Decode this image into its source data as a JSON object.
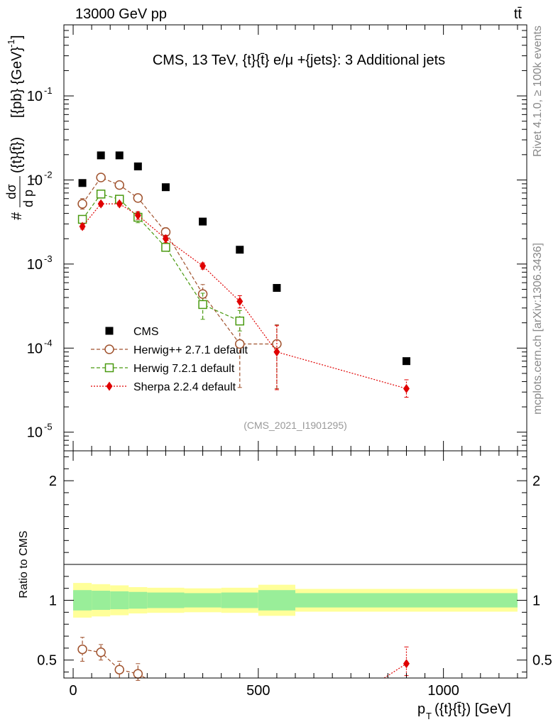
{
  "header": {
    "left": "13000 GeV pp",
    "right": "tt̄"
  },
  "side_labels": {
    "rivet": "Rivet 4.1.0, ≥ 100k events",
    "mcplots": "mcplots.cern.ch [arXiv:1306.3436]"
  },
  "chart_data": [
    {
      "type": "scatter",
      "panel": "main",
      "title": "CMS, 13 TeV, {t}{t̄} e/μ +{jets}: 3 Additional jets",
      "watermark": "(CMS_2021_I1901295)",
      "ylabel": "# dσ / d pT({t}{t̄}) [{pb} {GeV}^-1]",
      "ylabel_parts": {
        "hash": "#",
        "numerator": "dσ",
        "denominator_d": "d p",
        "sub": "T",
        "paren": "({t}{t̄})",
        "unit": "[{pb} {GeV}",
        "exponent": "-1",
        "close": "]"
      },
      "yscale": "log",
      "xlim": [
        -25,
        1225
      ],
      "ylim": [
        6e-06,
        0.7
      ],
      "legend_position": "lower-left",
      "y_ticks": [
        {
          "value": 0.1,
          "mantissa": "10",
          "exp": "-1"
        },
        {
          "value": 0.01,
          "mantissa": "10",
          "exp": "-2"
        },
        {
          "value": 0.001,
          "mantissa": "10",
          "exp": "-3"
        },
        {
          "value": 0.0001,
          "mantissa": "10",
          "exp": "-4"
        },
        {
          "value": 1e-05,
          "mantissa": "10",
          "exp": "-5"
        }
      ],
      "series": [
        {
          "name": "CMS",
          "color": "#000000",
          "marker": "square",
          "x": [
            25,
            75,
            125,
            175,
            250,
            350,
            450,
            550,
            900
          ],
          "y": [
            0.0092,
            0.0196,
            0.0196,
            0.0145,
            0.0082,
            0.0032,
            0.00148,
            0.00052,
            7e-05
          ]
        },
        {
          "name": "Herwig++ 2.7.1 default",
          "color": "#a0522d",
          "marker": "circle",
          "line": "dashed",
          "x": [
            25,
            75,
            125,
            175,
            250,
            350,
            450,
            550
          ],
          "y": [
            0.0052,
            0.0107,
            0.0087,
            0.0061,
            0.0024,
            0.00044,
            0.000112,
            0.000112
          ],
          "err_lo": [
            0.0045,
            0.0099,
            0.008,
            0.0055,
            0.0021,
            0.00035,
            3.4e-05,
            3.3e-05
          ],
          "err_hi": [
            0.006,
            0.0115,
            0.0094,
            0.0068,
            0.0027,
            0.00057,
            0.00019,
            0.00019
          ]
        },
        {
          "name": "Herwig 7.2.1 default",
          "color": "#4a9a10",
          "marker": "open-square",
          "line": "dashed",
          "x": [
            25,
            75,
            125,
            175,
            250,
            350,
            450
          ],
          "y": [
            0.0034,
            0.0068,
            0.0059,
            0.0036,
            0.00158,
            0.00033,
            0.00021
          ],
          "err_lo": [
            0.0031,
            0.0063,
            0.0054,
            0.0031,
            0.00142,
            0.00022,
            0.00016
          ],
          "err_hi": [
            0.0037,
            0.0073,
            0.0064,
            0.0041,
            0.00175,
            0.00045,
            0.00028
          ]
        },
        {
          "name": "Sherpa 2.2.4 default",
          "color": "#e00000",
          "marker": "diamond",
          "line": "dotted",
          "x": [
            25,
            75,
            125,
            175,
            250,
            350,
            450,
            550,
            900
          ],
          "y": [
            0.0028,
            0.0052,
            0.0052,
            0.0038,
            0.002,
            0.00095,
            0.00036,
            9e-05,
            3.3e-05
          ],
          "err_lo": [
            0.0026,
            0.0049,
            0.0049,
            0.0034,
            0.0018,
            0.00087,
            0.0003,
            3.2e-05,
            2.6e-05
          ],
          "err_hi": [
            0.003,
            0.0055,
            0.0055,
            0.0042,
            0.0022,
            0.00103,
            0.00042,
            0.000185,
            4.2e-05
          ]
        }
      ]
    },
    {
      "type": "line",
      "panel": "ratio",
      "ylabel": "Ratio to CMS",
      "xlabel_parts": {
        "p": "p",
        "sub": "T",
        "rest": "({t}{t̄}) [GeV]"
      },
      "xlim": [
        -25,
        1225
      ],
      "ylim": [
        0.35,
        2.25
      ],
      "x_ticks": [
        {
          "value": 0,
          "label": "0"
        },
        {
          "value": 500,
          "label": "500"
        },
        {
          "value": 1000,
          "label": "1000"
        }
      ],
      "y_ticks": [
        {
          "value": 0.5,
          "label": "0.5"
        },
        {
          "value": 1,
          "label": "1"
        },
        {
          "value": 2,
          "label": "2"
        }
      ],
      "bin_edges": [
        0,
        50,
        100,
        150,
        200,
        300,
        400,
        500,
        600,
        1200
      ],
      "band_outer": [
        [
          0.855,
          1.145
        ],
        [
          0.865,
          1.135
        ],
        [
          0.875,
          1.125
        ],
        [
          0.89,
          1.11
        ],
        [
          0.895,
          1.105
        ],
        [
          0.9,
          1.1
        ],
        [
          0.895,
          1.105
        ],
        [
          0.87,
          1.13
        ],
        [
          0.905,
          1.095
        ]
      ],
      "band_inner": [
        [
          0.915,
          1.085
        ],
        [
          0.92,
          1.08
        ],
        [
          0.925,
          1.075
        ],
        [
          0.93,
          1.07
        ],
        [
          0.935,
          1.065
        ],
        [
          0.94,
          1.06
        ],
        [
          0.935,
          1.065
        ],
        [
          0.915,
          1.085
        ],
        [
          0.94,
          1.06
        ]
      ],
      "series": [
        {
          "name": "Herwig++ 2.7.1 default",
          "color": "#a0522d",
          "marker": "circle",
          "line": "dashed",
          "x": [
            25,
            75,
            125,
            175,
            195
          ],
          "y": [
            0.59,
            0.565,
            0.42,
            0.385,
            0.35
          ],
          "err_lo": [
            0.49,
            0.5,
            0.35,
            0.33,
            0.35
          ],
          "err_hi": [
            0.69,
            0.63,
            0.49,
            0.47,
            0.35
          ],
          "markers": [
            true,
            true,
            true,
            true,
            false
          ]
        },
        {
          "name": "Sherpa 2.2.4 default",
          "color": "#e00000",
          "marker": "diamond",
          "line": "dotted",
          "x": [
            840,
            900
          ],
          "y": [
            0.35,
            0.47
          ],
          "err_lo": [
            0.35,
            0.37
          ],
          "err_hi": [
            0.35,
            0.61
          ],
          "markers": [
            false,
            true
          ]
        }
      ]
    }
  ]
}
